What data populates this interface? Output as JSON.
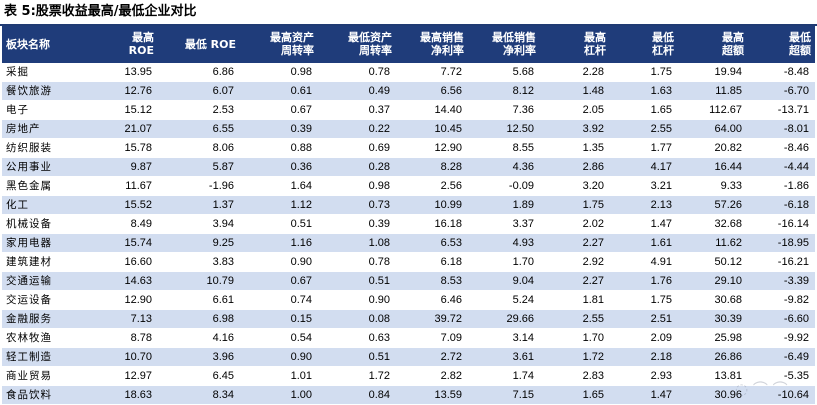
{
  "caption": "表 5:股票收益最高/最低企业对比",
  "headers": [
    "板块名称",
    "最高\nROE",
    "最低 ROE",
    "最高资产\n周转率",
    "最低资产\n周转率",
    "最高销售\n净利率",
    "最低销售\n净利率",
    "最高\n杠杆",
    "最低\n杠杆",
    "最高\n超额",
    "最低\n超额"
  ],
  "rows": [
    [
      "采掘",
      "13.95",
      "6.86",
      "0.98",
      "0.78",
      "7.72",
      "5.68",
      "2.28",
      "1.75",
      "19.94",
      "-8.48"
    ],
    [
      "餐饮旅游",
      "12.76",
      "6.07",
      "0.61",
      "0.49",
      "6.56",
      "8.12",
      "1.48",
      "1.63",
      "11.85",
      "-6.70"
    ],
    [
      "电子",
      "15.12",
      "2.53",
      "0.67",
      "0.37",
      "14.40",
      "7.36",
      "2.05",
      "1.65",
      "112.67",
      "-13.71"
    ],
    [
      "房地产",
      "21.07",
      "6.55",
      "0.39",
      "0.22",
      "10.45",
      "12.50",
      "3.92",
      "2.55",
      "64.00",
      "-8.01"
    ],
    [
      "纺织服装",
      "15.78",
      "8.06",
      "0.88",
      "0.69",
      "12.90",
      "8.55",
      "1.35",
      "1.77",
      "20.82",
      "-8.46"
    ],
    [
      "公用事业",
      "9.87",
      "5.87",
      "0.36",
      "0.28",
      "8.28",
      "4.36",
      "2.86",
      "4.17",
      "16.44",
      "-4.44"
    ],
    [
      "黑色金属",
      "11.67",
      "-1.96",
      "1.64",
      "0.98",
      "2.56",
      "-0.09",
      "3.20",
      "3.21",
      "9.33",
      "-1.86"
    ],
    [
      "化工",
      "15.52",
      "1.37",
      "1.12",
      "0.73",
      "10.99",
      "1.89",
      "1.75",
      "2.13",
      "57.26",
      "-6.18"
    ],
    [
      "机械设备",
      "8.49",
      "3.94",
      "0.51",
      "0.39",
      "16.18",
      "3.37",
      "2.02",
      "1.47",
      "32.68",
      "-16.14"
    ],
    [
      "家用电器",
      "15.74",
      "9.25",
      "1.16",
      "1.08",
      "6.53",
      "4.93",
      "2.27",
      "1.61",
      "11.62",
      "-18.95"
    ],
    [
      "建筑建材",
      "16.60",
      "3.83",
      "0.90",
      "0.78",
      "6.18",
      "1.70",
      "2.92",
      "4.91",
      "50.12",
      "-16.21"
    ],
    [
      "交通运输",
      "14.63",
      "10.79",
      "0.67",
      "0.51",
      "8.53",
      "9.04",
      "2.27",
      "1.76",
      "29.10",
      "-3.39"
    ],
    [
      "交运设备",
      "12.90",
      "6.61",
      "0.74",
      "0.90",
      "6.46",
      "5.24",
      "1.81",
      "1.75",
      "30.68",
      "-9.82"
    ],
    [
      "金融服务",
      "7.13",
      "6.98",
      "0.15",
      "0.08",
      "39.72",
      "29.66",
      "2.55",
      "2.51",
      "30.39",
      "-6.60"
    ],
    [
      "农林牧渔",
      "8.78",
      "4.16",
      "0.54",
      "0.63",
      "7.09",
      "3.14",
      "1.70",
      "2.09",
      "25.98",
      "-9.92"
    ],
    [
      "轻工制造",
      "10.70",
      "3.96",
      "0.90",
      "0.51",
      "2.72",
      "3.61",
      "1.72",
      "2.18",
      "26.86",
      "-6.49"
    ],
    [
      "商业贸易",
      "12.97",
      "6.45",
      "1.01",
      "1.72",
      "2.82",
      "1.74",
      "2.83",
      "2.93",
      "13.81",
      "-5.35"
    ],
    [
      "食品饮料",
      "18.63",
      "8.34",
      "1.00",
      "0.84",
      "13.59",
      "7.15",
      "1.65",
      "1.47",
      "30.96",
      "-10.64"
    ]
  ]
}
